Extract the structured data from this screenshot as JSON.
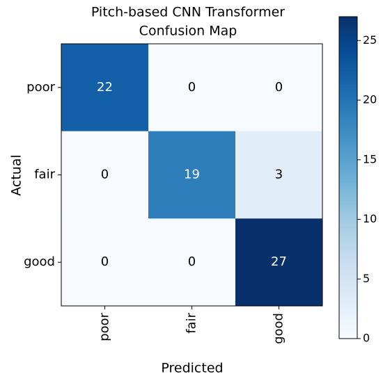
{
  "chart_data": {
    "type": "heatmap",
    "title": [
      "Pitch-based CNN Transformer",
      "Confusion Map"
    ],
    "xlabel": "Predicted",
    "ylabel": "Actual",
    "x_categories": [
      "poor",
      "fair",
      "good"
    ],
    "y_categories": [
      "poor",
      "fair",
      "good"
    ],
    "values": [
      [
        22,
        0,
        0
      ],
      [
        0,
        19,
        3
      ],
      [
        0,
        0,
        27
      ]
    ],
    "colormap": "Blues",
    "clim": [
      0,
      27
    ],
    "colorbar_ticks": [
      0,
      5,
      10,
      15,
      20,
      25
    ]
  }
}
